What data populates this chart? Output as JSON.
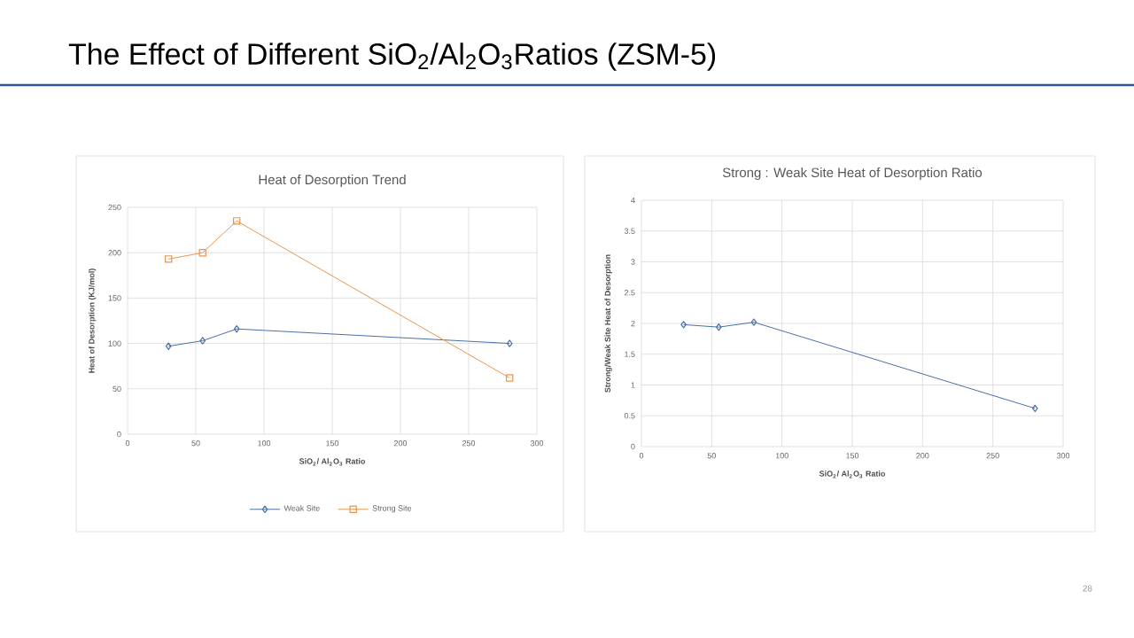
{
  "chart_data": [
    {
      "type": "line",
      "title": "Heat of Desorption Trend",
      "xlabel": "SiO$_{2}$/ Al$_{2}$O$_{3}$ Ratio",
      "ylabel": "Heat of Desorption (KJ/mol)",
      "annotations": [
        "The Effect of Different SiO$_{2}$/Al$_{2}$O$_{3}$Ratios (ZSM-5)"
      ],
      "x": [
        30,
        55,
        80,
        280
      ],
      "series": [
        {
          "name": "Weak Site",
          "color": "#4a6fa5",
          "marker": "diamond",
          "values": [
            97,
            103,
            116,
            100
          ]
        },
        {
          "name": "Strong Site",
          "color": "#e8964a",
          "marker": "square",
          "values": [
            193,
            200,
            235,
            62
          ]
        }
      ],
      "xlim": [
        0,
        300
      ],
      "xticks": [
        0,
        50,
        100,
        150,
        200,
        250,
        300
      ],
      "ylim": [
        0,
        250
      ],
      "yticks": [
        0,
        50,
        100,
        150,
        200,
        250
      ],
      "grid": true,
      "legend": "bottom"
    },
    {
      "type": "line",
      "title": "Strong : Weak Site Heat of Desorption Ratio",
      "xlabel": "SiO$_{2}$/ Al$_{2}$O$_{3}$ Ratio",
      "ylabel": "Strong/Weak Site Heat of Desorption",
      "annotations": [
        "28"
      ],
      "x": [
        30,
        55,
        80,
        280
      ],
      "series": [
        {
          "color": "#4a6fa5",
          "marker": "diamond",
          "values": [
            1.98,
            1.94,
            2.02,
            0.62
          ]
        }
      ],
      "xlim": [
        0,
        300
      ],
      "xticks": [
        0,
        50,
        100,
        150,
        200,
        250,
        300
      ],
      "ylim": [
        0,
        4
      ],
      "yticks": [
        0,
        0.5,
        1,
        1.5,
        2,
        2.5,
        3,
        3.5,
        4
      ],
      "grid": true
    }
  ]
}
